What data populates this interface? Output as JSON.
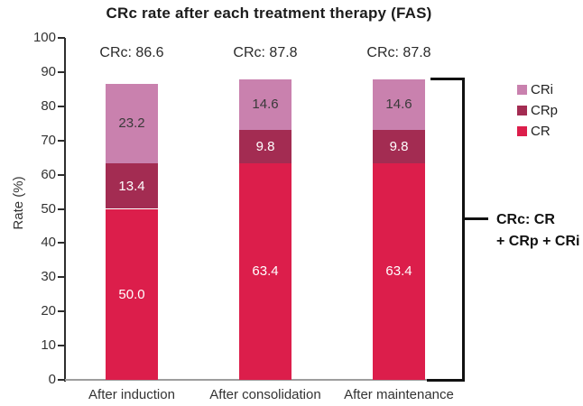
{
  "chart_data": {
    "type": "bar",
    "stacked": true,
    "title": "CRc rate after each treatment therapy (FAS)",
    "ylabel": "Rate (%)",
    "xlabel": "",
    "ylim": [
      0,
      100
    ],
    "y_ticks": [
      0,
      10,
      20,
      30,
      40,
      50,
      60,
      70,
      80,
      90,
      100
    ],
    "grid": false,
    "legend_position": "right",
    "legend_order": [
      "CRi",
      "CRp",
      "CR"
    ],
    "categories": [
      "After induction",
      "After consolidation",
      "After maintenance"
    ],
    "series": [
      {
        "name": "CR",
        "color": "#dc1e4b",
        "label_color": "#ffffff",
        "values": [
          50.0,
          63.4,
          63.4
        ]
      },
      {
        "name": "CRp",
        "color": "#a32c52",
        "label_color": "#ffffff",
        "values": [
          13.4,
          9.8,
          9.8
        ]
      },
      {
        "name": "CRi",
        "color": "#c981ae",
        "label_color": "#3a3a3a",
        "values": [
          23.2,
          14.6,
          14.6
        ]
      }
    ],
    "bar_totals": [
      "CRc: 86.6",
      "CRc: 87.8",
      "CRc: 87.8"
    ]
  },
  "annotation": {
    "line1": "CRc: CR",
    "line2": "+ CRp + CRi"
  },
  "colors": {
    "cr": "#dc1e4b",
    "crp": "#a32c52",
    "cri": "#c981ae",
    "axis": "#2e2e2e",
    "baseline": "#9e9e9e",
    "bracket": "#111111"
  }
}
